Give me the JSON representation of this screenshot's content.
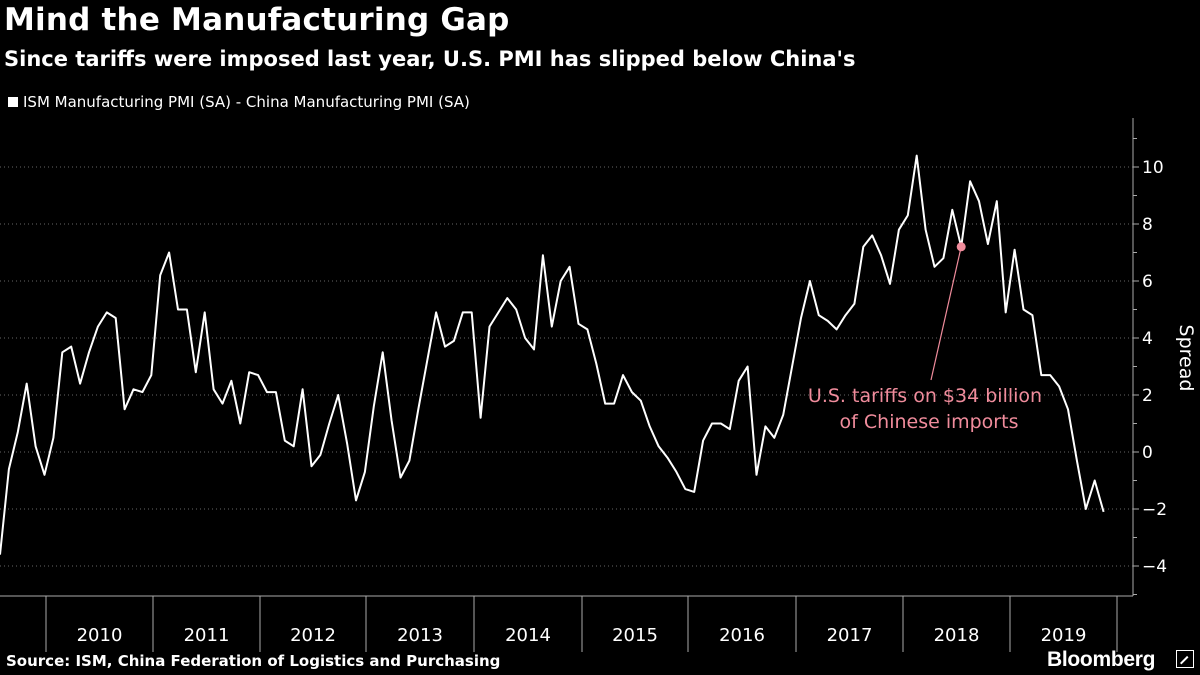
{
  "header": {
    "title": "Mind the Manufacturing Gap",
    "subtitle": "Since tariffs were imposed last year, U.S. PMI has slipped below China's"
  },
  "footer": {
    "source": "Source: ISM, China Federation of Logistics and Purchasing",
    "brand": "Bloomberg"
  },
  "colors": {
    "background": "#000000",
    "line": "#ffffff",
    "annotation": "#f08c9c"
  },
  "chart_data": {
    "type": "line",
    "ylabel": "Spread",
    "ylim": [
      -5,
      11
    ],
    "yticks": [
      -4,
      -2,
      0,
      2,
      4,
      6,
      8,
      10
    ],
    "y_axis_position": "right",
    "x_tick_labels": [
      "2010",
      "2011",
      "2012",
      "2013",
      "2014",
      "2015",
      "2016",
      "2017",
      "2018",
      "2019"
    ],
    "grid": "horizontal dotted",
    "legend": {
      "position": "top-left",
      "entries": [
        "ISM Manufacturing PMI (SA) - China Manufacturing PMI (SA)"
      ]
    },
    "series": [
      {
        "name": "ISM Manufacturing PMI (SA) - China Manufacturing PMI (SA)",
        "x_start": "2009-07",
        "x_step": "1 month",
        "values": [
          -3.6,
          -0.6,
          0.7,
          2.4,
          0.2,
          -0.8,
          0.5,
          3.5,
          3.7,
          2.4,
          3.5,
          4.4,
          4.9,
          4.7,
          1.5,
          2.2,
          2.1,
          2.7,
          6.2,
          7.0,
          5.0,
          5.0,
          2.8,
          4.9,
          2.2,
          1.7,
          2.5,
          1.0,
          2.8,
          2.7,
          2.1,
          2.1,
          0.4,
          0.2,
          2.2,
          -0.5,
          -0.1,
          1.0,
          2.0,
          0.3,
          -1.7,
          -0.7,
          1.6,
          3.5,
          1.1,
          -0.9,
          -0.3,
          1.5,
          3.2,
          4.9,
          3.7,
          3.9,
          4.9,
          4.9,
          1.2,
          4.4,
          4.9,
          5.4,
          5.0,
          4.0,
          3.6,
          6.9,
          4.4,
          6.0,
          6.5,
          4.5,
          4.3,
          3.1,
          1.7,
          1.7,
          2.7,
          2.1,
          1.8,
          0.9,
          0.2,
          -0.2,
          -0.7,
          -1.3,
          -1.4,
          0.4,
          1.0,
          1.0,
          0.8,
          2.5,
          3.0,
          -0.8,
          0.9,
          0.5,
          1.3,
          3.0,
          4.7,
          6.0,
          4.8,
          4.6,
          4.3,
          4.8,
          5.2,
          7.2,
          7.6,
          6.9,
          5.9,
          7.8,
          8.3,
          10.4,
          7.8,
          6.5,
          6.8,
          8.5,
          7.2,
          9.5,
          8.8,
          7.3,
          8.8,
          4.9,
          7.1,
          5.0,
          4.8,
          2.7,
          2.7,
          2.3,
          1.5,
          -0.3,
          -2.0,
          -1.0,
          -2.1
        ]
      }
    ],
    "annotations": [
      {
        "label_line1": "U.S. tariffs on $34 billion",
        "label_line2": "of Chinese imports",
        "x": "2018-07",
        "y": 7.2
      }
    ]
  }
}
